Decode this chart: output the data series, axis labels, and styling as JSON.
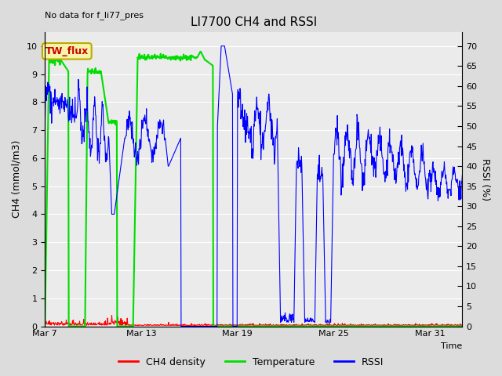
{
  "title": "LI7700 CH4 and RSSI",
  "top_left_text": "No data for f_li77_pres",
  "xlabel": "Time",
  "ylabel_left": "CH4 (mmol/m3)",
  "ylabel_right": "RSSI (%)",
  "annotation_box": "TW_flux",
  "x_tick_labels": [
    "Mar 7",
    "Mar 13",
    "Mar 19",
    "Mar 25",
    "Mar 31"
  ],
  "x_tick_positions": [
    0,
    6,
    12,
    18,
    24
  ],
  "ylim_left": [
    0.0,
    10.5
  ],
  "ylim_right": [
    0,
    73.5
  ],
  "yticks_left": [
    0.0,
    1.0,
    2.0,
    3.0,
    4.0,
    5.0,
    6.0,
    7.0,
    8.0,
    9.0,
    10.0
  ],
  "yticks_right": [
    0,
    5,
    10,
    15,
    20,
    25,
    30,
    35,
    40,
    45,
    50,
    55,
    60,
    65,
    70
  ],
  "bg_color": "#dcdcdc",
  "plot_bg_color": "#ebebeb",
  "grid_color": "#ffffff",
  "ch4_color": "#ff0000",
  "temp_color": "#00dd00",
  "rssi_color": "#0000ff",
  "legend_labels": [
    "CH4 density",
    "Temperature",
    "RSSI"
  ],
  "xlim": [
    0,
    26
  ],
  "figsize": [
    6.4,
    4.8
  ],
  "dpi": 100
}
